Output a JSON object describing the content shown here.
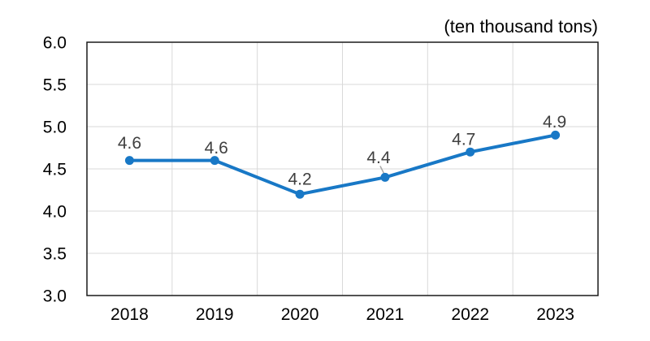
{
  "chart_data": {
    "type": "line",
    "title": "(ten thousand tons)",
    "categories": [
      "2018",
      "2019",
      "2020",
      "2021",
      "2022",
      "2023"
    ],
    "series": [
      {
        "name": "",
        "values": [
          4.6,
          4.6,
          4.2,
          4.4,
          4.7,
          4.9
        ]
      }
    ],
    "data_labels": [
      "4.6",
      "4.6",
      "4.2",
      "4.4",
      "4.7",
      "4.9"
    ],
    "ylim": [
      3.0,
      6.0
    ],
    "ytick_step": 0.5,
    "ytick_labels": [
      "3.0",
      "3.5",
      "4.0",
      "4.5",
      "5.0",
      "5.5",
      "6.0"
    ],
    "xlabel": "",
    "ylabel": "",
    "grid": true,
    "legend": "none"
  },
  "colors": {
    "line": "#1878C6",
    "marker": "#1878C6",
    "data_label": "#404040",
    "axis_label": "#000000",
    "title": "#000000",
    "gridline": "#D9D9D9",
    "plot_border": "#1A1A1A",
    "leader_line": "#A6A6A6",
    "background": "#FFFFFF"
  }
}
